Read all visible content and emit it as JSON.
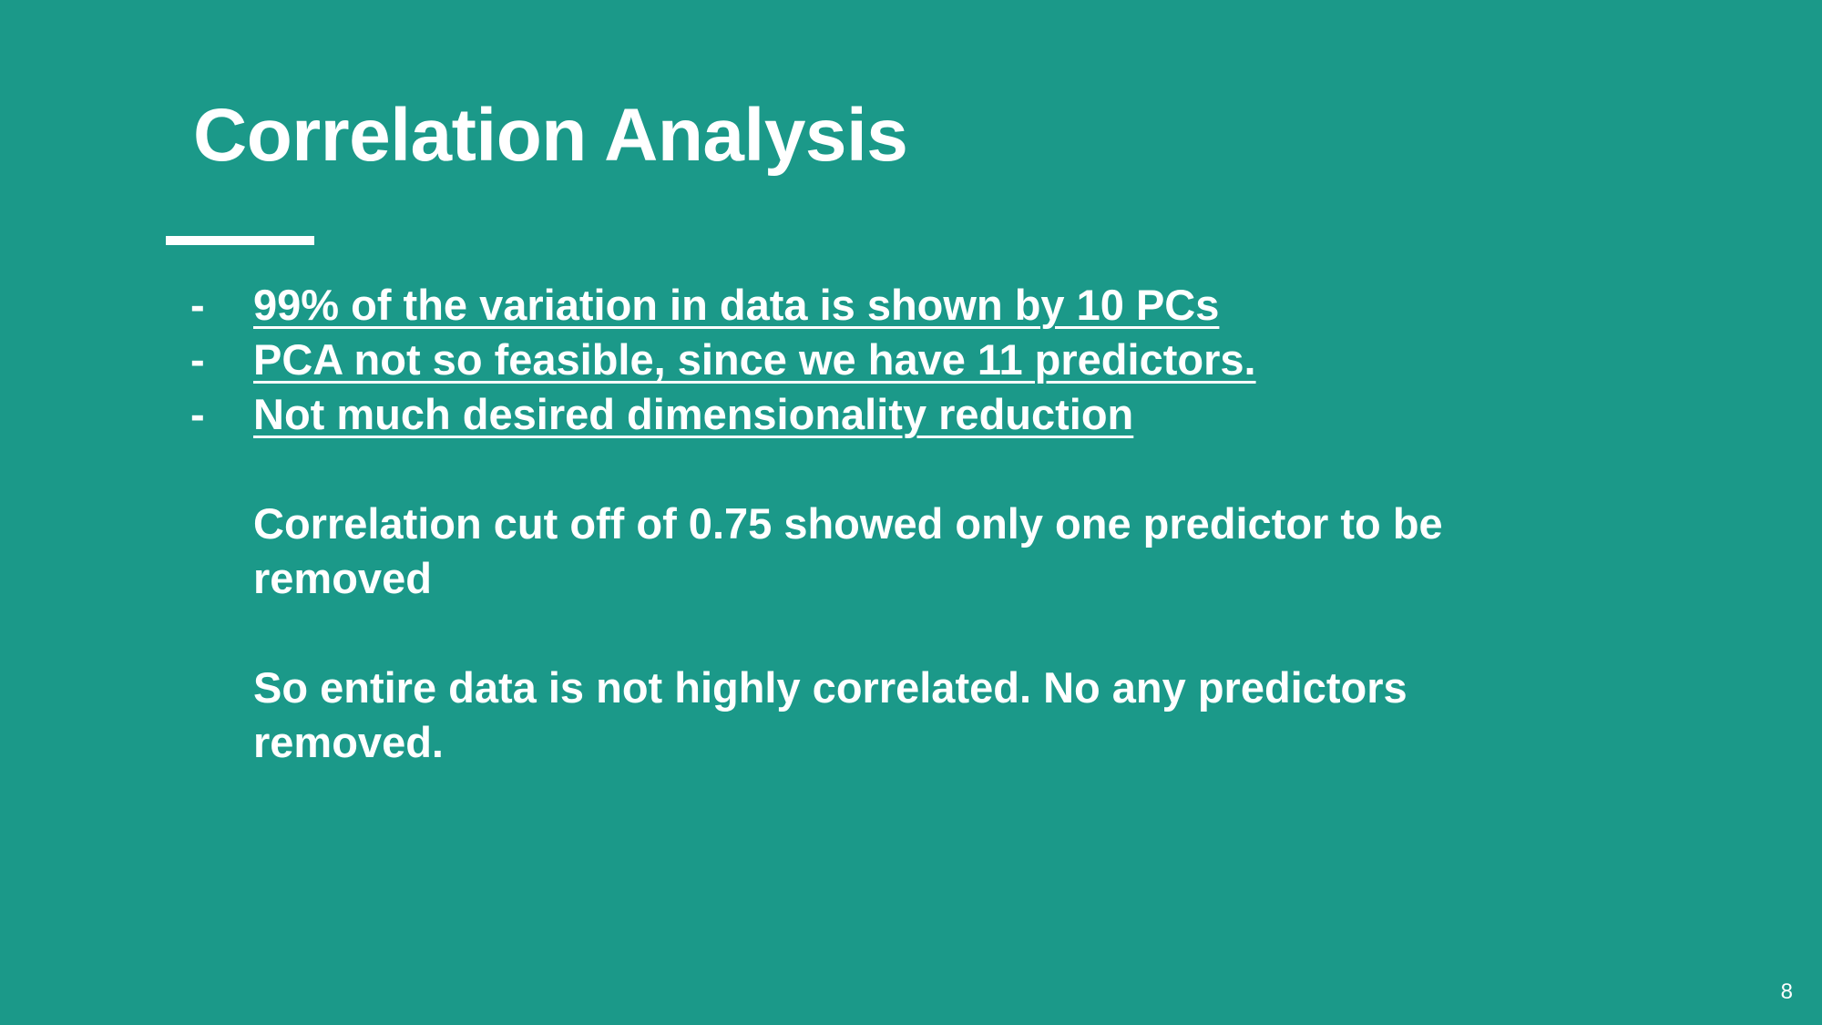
{
  "slide": {
    "title": "Correlation Analysis",
    "bullets": [
      {
        "marker": "-",
        "text": "99% of the variation in data is shown by 10 PCs"
      },
      {
        "marker": "-",
        "text": "PCA not so feasible, since we have 11 predictors."
      },
      {
        "marker": "-",
        "text": "Not much desired dimensionality reduction"
      }
    ],
    "paragraphs": [
      "Correlation cut off of 0.75 showed only one predictor to be removed",
      "So entire data is not highly correlated. No any predictors removed."
    ],
    "page_number": "8"
  },
  "colors": {
    "background": "#1b9989",
    "text": "#ffffff"
  }
}
